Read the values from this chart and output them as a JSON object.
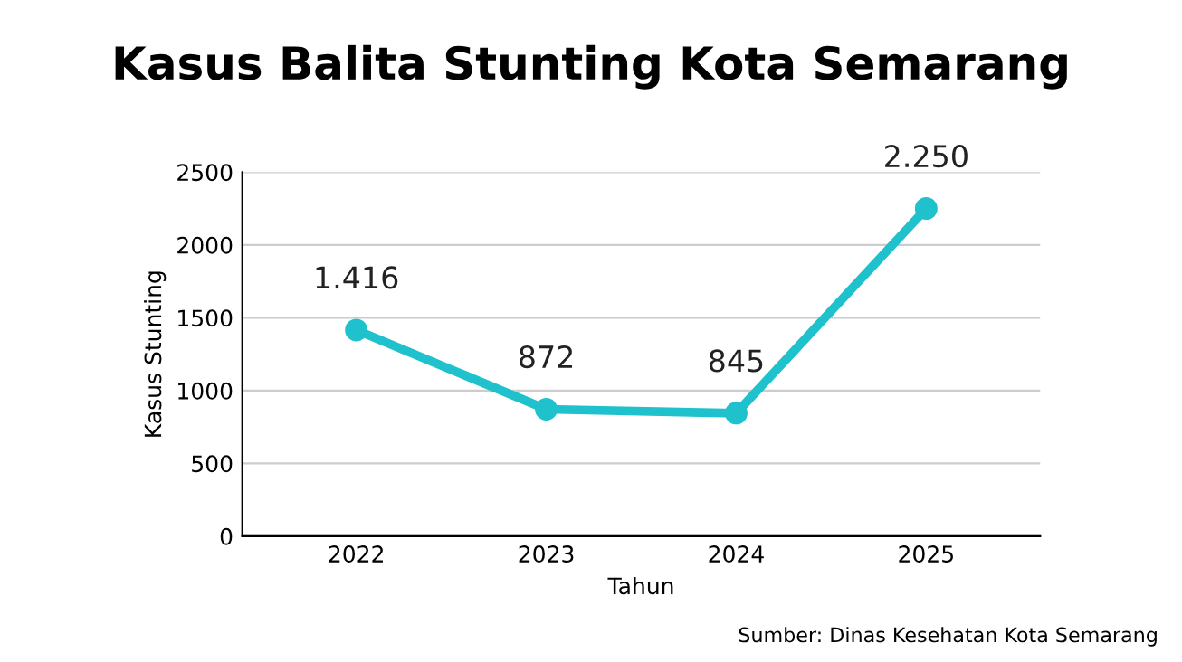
{
  "chart_data": {
    "type": "line",
    "title": "Kasus Balita Stunting Kota Semarang",
    "xlabel": "Tahun",
    "ylabel": "Kasus Stunting",
    "categories": [
      "2022",
      "2023",
      "2024",
      "2025"
    ],
    "series": [
      {
        "color": "#1fc2cc",
        "values": [
          1416,
          872,
          845,
          2250
        ],
        "value_labels": [
          "1.416",
          "872",
          "845",
          "2.250"
        ]
      }
    ],
    "ylim": [
      0,
      2500
    ],
    "yticks": [
      0,
      500,
      1000,
      1500,
      2000,
      2500
    ],
    "grid": "y",
    "marker": "circle",
    "line_style": "solid",
    "legend": false,
    "annotations": [
      "Sumber: Dinas Kesehatan Kota Semarang"
    ]
  }
}
